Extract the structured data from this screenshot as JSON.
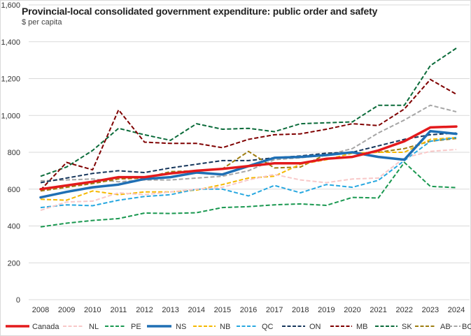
{
  "chart_data": {
    "type": "line",
    "title": "Provincial-local consolidated government expenditure: public order and safety",
    "subtitle": "$ per capita",
    "xlabel": "",
    "ylabel": "$ per capita",
    "ylim": [
      0,
      1600
    ],
    "yticks": [
      0,
      200,
      400,
      600,
      800,
      1000,
      1200,
      1400,
      1600
    ],
    "ytick_labels": [
      "0",
      "200",
      "400",
      "600",
      "800",
      "1,000",
      "1,200",
      "1,400",
      "1,600"
    ],
    "grid": true,
    "legend_position": "bottom",
    "x": [
      "2008",
      "2009",
      "2010",
      "2011",
      "2012",
      "2013",
      "2014",
      "2015",
      "2016",
      "2017",
      "2018",
      "2019",
      "2020",
      "2021",
      "2022",
      "2023",
      "2024"
    ],
    "series": [
      {
        "name": "Canada",
        "color": "#e31a1c",
        "style": "solid",
        "width": 3.5,
        "values": [
          600,
          620,
          640,
          665,
          665,
          685,
          700,
          710,
          725,
          740,
          740,
          765,
          775,
          810,
          860,
          935,
          940
        ]
      },
      {
        "name": "NL",
        "color": "#f8c8c8",
        "style": "dashed",
        "width": 2,
        "values": [
          485,
          530,
          535,
          580,
          570,
          585,
          600,
          610,
          650,
          680,
          650,
          635,
          655,
          660,
          770,
          805,
          815
        ]
      },
      {
        "name": "PE",
        "color": "#1a9850",
        "style": "dashed",
        "width": 2,
        "values": [
          395,
          415,
          430,
          440,
          470,
          468,
          472,
          500,
          505,
          515,
          520,
          512,
          555,
          552,
          745,
          615,
          608
        ]
      },
      {
        "name": "NS",
        "color": "#1f6fb4",
        "style": "solid",
        "width": 3.5,
        "values": [
          555,
          585,
          610,
          625,
          655,
          665,
          690,
          680,
          725,
          770,
          775,
          785,
          800,
          775,
          760,
          915,
          900
        ]
      },
      {
        "name": "NB",
        "color": "#f5b800",
        "style": "dashed",
        "width": 2,
        "values": [
          545,
          540,
          590,
          570,
          585,
          585,
          595,
          625,
          660,
          670,
          735,
          760,
          795,
          800,
          800,
          870,
          880
        ]
      },
      {
        "name": "QC",
        "color": "#28a8e0",
        "style": "dashed",
        "width": 2,
        "values": [
          500,
          515,
          510,
          540,
          560,
          570,
          600,
          600,
          563,
          620,
          580,
          625,
          610,
          648,
          755,
          860,
          880
        ]
      },
      {
        "name": "ON",
        "color": "#16365c",
        "style": "dashed",
        "width": 2,
        "values": [
          635,
          660,
          685,
          700,
          690,
          715,
          735,
          755,
          755,
          770,
          780,
          795,
          800,
          835,
          870,
          895,
          905
        ]
      },
      {
        "name": "MB",
        "color": "#7f0000",
        "style": "dashed",
        "width": 2,
        "values": [
          595,
          745,
          705,
          1030,
          855,
          848,
          848,
          825,
          870,
          895,
          900,
          925,
          955,
          945,
          1035,
          1195,
          1115
        ]
      },
      {
        "name": "SK",
        "color": "#0b6b3a",
        "style": "dashed",
        "width": 2,
        "values": [
          670,
          720,
          810,
          930,
          895,
          865,
          955,
          925,
          930,
          912,
          955,
          960,
          965,
          1055,
          1055,
          1270,
          1365
        ]
      },
      {
        "name": "AB",
        "color": "#9e7d10",
        "style": "dashed",
        "width": 2,
        "values": [
          590,
          610,
          630,
          655,
          660,
          695,
          700,
          710,
          805,
          715,
          720,
          790,
          795,
          800,
          820,
          860,
          875
        ]
      },
      {
        "name": "BC",
        "color": "#a6a6a6",
        "style": "dashed",
        "width": 2,
        "values": [
          645,
          650,
          655,
          640,
          650,
          650,
          660,
          670,
          700,
          760,
          770,
          785,
          820,
          905,
          975,
          1055,
          1020
        ]
      }
    ]
  }
}
